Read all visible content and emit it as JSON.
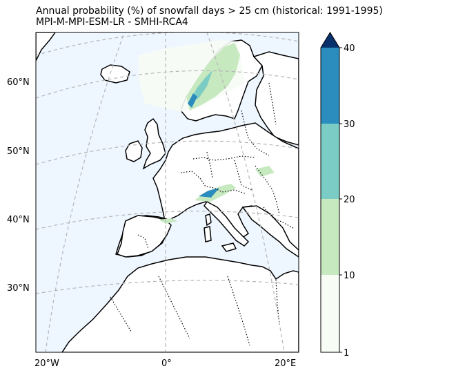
{
  "title_line1": "Annual probability (%) of snowfall days > 25 cm (historical: 1991-1995)",
  "title_line2": "MPI-M-MPI-ESM-LR - SMHI-RCA4",
  "map": {
    "lat_labels": [
      "60°N",
      "50°N",
      "40°N",
      "30°N"
    ],
    "lon_labels": [
      "20°W",
      "0°",
      "20°E"
    ],
    "ocean_color": "#eef6ff",
    "gridlines": true
  },
  "colorbar": {
    "ticks": [
      "1",
      "10",
      "20",
      "30",
      "40"
    ],
    "bins": [
      {
        "from": 1,
        "to": 10,
        "color": "#f7fcf5"
      },
      {
        "from": 10,
        "to": 20,
        "color": "#c7e9c0"
      },
      {
        "from": 20,
        "to": 30,
        "color": "#7bccc4"
      },
      {
        "from": 30,
        "to": 40,
        "color": "#2b8cbe"
      }
    ],
    "extend_color": "#08306b",
    "extend": "max"
  }
}
